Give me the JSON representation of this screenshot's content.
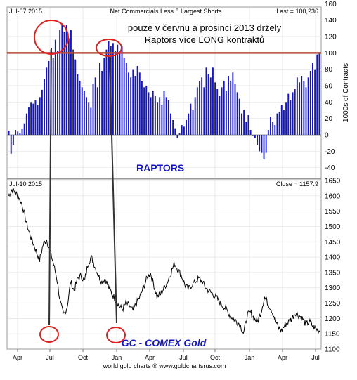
{
  "chart_data": [
    {
      "type": "bar",
      "header_left": "Jul-07 2015",
      "title": "Net Commercials Less 8 Largest Shorts",
      "header_right": "Last = 100,236",
      "ylabel": "1000s of Contracts",
      "ylim": [
        -45,
        160
      ],
      "yticks": [
        -40,
        -20,
        0,
        20,
        40,
        60,
        80,
        100,
        120,
        140,
        160
      ],
      "reference_line": 100,
      "annotation_title": "pouze v červnu a prosinci 2013 držely",
      "annotation_subtitle": "Raptors více LONG kontraktů",
      "label": "RAPTORS",
      "bar_color": "#1414c8",
      "reference_color": "#b5493a",
      "values": [
        5,
        -23,
        -12,
        6,
        4,
        2,
        7,
        14,
        26,
        34,
        40,
        38,
        42,
        36,
        46,
        55,
        68,
        82,
        90,
        104,
        94,
        116,
        102,
        128,
        136,
        126,
        134,
        118,
        128,
        104,
        92,
        74,
        66,
        58,
        54,
        46,
        40,
        33,
        62,
        70,
        58,
        88,
        78,
        94,
        104,
        114,
        108,
        112,
        102,
        110,
        100,
        108,
        94,
        88,
        76,
        70,
        80,
        72,
        84,
        76,
        66,
        58,
        60,
        52,
        46,
        54,
        48,
        40,
        46,
        36,
        54,
        46,
        42,
        26,
        18,
        8,
        -4,
        2,
        12,
        10,
        18,
        26,
        38,
        30,
        46,
        58,
        66,
        70,
        58,
        82,
        74,
        70,
        82,
        64,
        56,
        48,
        58,
        66,
        54,
        72,
        66,
        76,
        62,
        52,
        44,
        26,
        30,
        16,
        24,
        6,
        0,
        -4,
        -12,
        -20,
        -22,
        -30,
        -22,
        6,
        22,
        16,
        12,
        26,
        28,
        36,
        30,
        40,
        50,
        42,
        52,
        56,
        70,
        64,
        72,
        66,
        58,
        70,
        78,
        88,
        80,
        98,
        100
      ]
    },
    {
      "type": "line",
      "header_left": "Jul-10 2015",
      "header_right": "Close = 1157.9",
      "ylim": [
        1100,
        1650
      ],
      "yticks": [
        1100,
        1150,
        1200,
        1250,
        1300,
        1350,
        1400,
        1450,
        1500,
        1550,
        1600,
        1650
      ],
      "xticks": [
        "Apr",
        "Jul",
        "Oct",
        "Jan",
        "Apr",
        "Jul",
        "Oct",
        "Jan",
        "Apr",
        "Jul"
      ],
      "label": "GC - COMEX Gold",
      "footer": "world gold charts ® www.goldchartsrus.com",
      "line_color": "#000000",
      "anchors": [
        1600,
        1620,
        1610,
        1595,
        1570,
        1520,
        1480,
        1450,
        1420,
        1390,
        1440,
        1460,
        1420,
        1380,
        1330,
        1250,
        1210,
        1240,
        1320,
        1290,
        1330,
        1340,
        1320,
        1380,
        1400,
        1370,
        1340,
        1320,
        1330,
        1300,
        1280,
        1260,
        1240,
        1230,
        1250,
        1240,
        1225,
        1250,
        1270,
        1300,
        1330,
        1350,
        1310,
        1270,
        1280,
        1300,
        1320,
        1350,
        1380,
        1360,
        1340,
        1310,
        1295,
        1310,
        1320,
        1330,
        1320,
        1300,
        1290,
        1280,
        1270,
        1255,
        1240,
        1230,
        1210,
        1200,
        1190,
        1180,
        1150,
        1210,
        1220,
        1200,
        1190,
        1220,
        1270,
        1250,
        1230,
        1200,
        1170,
        1160,
        1180,
        1190,
        1200,
        1220,
        1210,
        1200,
        1180,
        1190,
        1175,
        1165,
        1160
      ]
    }
  ]
}
